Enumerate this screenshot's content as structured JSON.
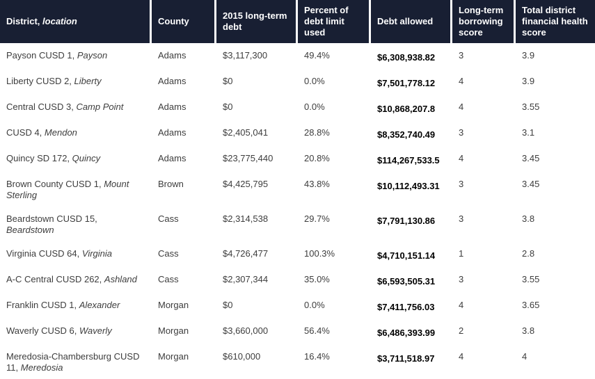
{
  "chart_data": {
    "type": "table",
    "columns": [
      {
        "label": "District,",
        "label_italic": "location"
      },
      {
        "label": "County"
      },
      {
        "label": "2015 long-term debt"
      },
      {
        "label": "Percent of debt limit used"
      },
      {
        "label": "Debt allowed"
      },
      {
        "label": "Long-term borrowing score"
      },
      {
        "label": "Total district financial health score"
      }
    ],
    "rows": [
      {
        "district": "Payson CUSD 1,",
        "location": "Payson",
        "county": "Adams",
        "debt_2015": "$3,117,300",
        "pct_limit_used": "49.4%",
        "debt_allowed": "$6,308,938.82",
        "borrowing_score": "3",
        "health_score": "3.9"
      },
      {
        "district": "Liberty CUSD 2,",
        "location": "Liberty",
        "county": "Adams",
        "debt_2015": "$0",
        "pct_limit_used": "0.0%",
        "debt_allowed": "$7,501,778.12",
        "borrowing_score": "4",
        "health_score": "3.9"
      },
      {
        "district": "Central CUSD 3,",
        "location": "Camp Point",
        "county": "Adams",
        "debt_2015": "$0",
        "pct_limit_used": "0.0%",
        "debt_allowed": "$10,868,207.8",
        "borrowing_score": "4",
        "health_score": "3.55"
      },
      {
        "district": "CUSD 4,",
        "location": "Mendon",
        "county": "Adams",
        "debt_2015": "$2,405,041",
        "pct_limit_used": "28.8%",
        "debt_allowed": "$8,352,740.49",
        "borrowing_score": "3",
        "health_score": "3.1"
      },
      {
        "district": "Quincy SD 172,",
        "location": "Quincy",
        "county": "Adams",
        "debt_2015": "$23,775,440",
        "pct_limit_used": "20.8%",
        "debt_allowed": "$114,267,533.5",
        "borrowing_score": "4",
        "health_score": "3.45"
      },
      {
        "district": "Brown County CUSD 1,",
        "location": "Mount Sterling",
        "county": "Brown",
        "debt_2015": "$4,425,795",
        "pct_limit_used": "43.8%",
        "debt_allowed": "$10,112,493.31",
        "borrowing_score": "3",
        "health_score": "3.45"
      },
      {
        "district": "Beardstown CUSD 15,",
        "location": "Beardstown",
        "county": "Cass",
        "debt_2015": "$2,314,538",
        "pct_limit_used": "29.7%",
        "debt_allowed": "$7,791,130.86",
        "borrowing_score": "3",
        "health_score": "3.8"
      },
      {
        "district": "Virginia CUSD 64,",
        "location": "Virginia",
        "county": "Cass",
        "debt_2015": "$4,726,477",
        "pct_limit_used": "100.3%",
        "debt_allowed": "$4,710,151.14",
        "borrowing_score": "1",
        "health_score": "2.8"
      },
      {
        "district": "A-C Central CUSD 262,",
        "location": "Ashland",
        "county": "Cass",
        "debt_2015": "$2,307,344",
        "pct_limit_used": "35.0%",
        "debt_allowed": "$6,593,505.31",
        "borrowing_score": "3",
        "health_score": "3.55"
      },
      {
        "district": "Franklin CUSD 1,",
        "location": "Alexander",
        "county": "Morgan",
        "debt_2015": "$0",
        "pct_limit_used": "0.0%",
        "debt_allowed": "$7,411,756.03",
        "borrowing_score": "4",
        "health_score": "3.65"
      },
      {
        "district": "Waverly CUSD 6,",
        "location": "Waverly",
        "county": "Morgan",
        "debt_2015": "$3,660,000",
        "pct_limit_used": "56.4%",
        "debt_allowed": "$6,486,393.99",
        "borrowing_score": "2",
        "health_score": "3.8"
      },
      {
        "district": "Meredosia-Chambersburg CUSD 11,",
        "location": "Meredosia",
        "county": "Morgan",
        "debt_2015": "$610,000",
        "pct_limit_used": "16.4%",
        "debt_allowed": "$3,711,518.97",
        "borrowing_score": "4",
        "health_score": "4"
      }
    ]
  },
  "colors": {
    "header_bg": "#181f33",
    "header_text": "#ffffff",
    "body_text": "#3d3d3d",
    "debt_allowed_text": "#000000"
  }
}
